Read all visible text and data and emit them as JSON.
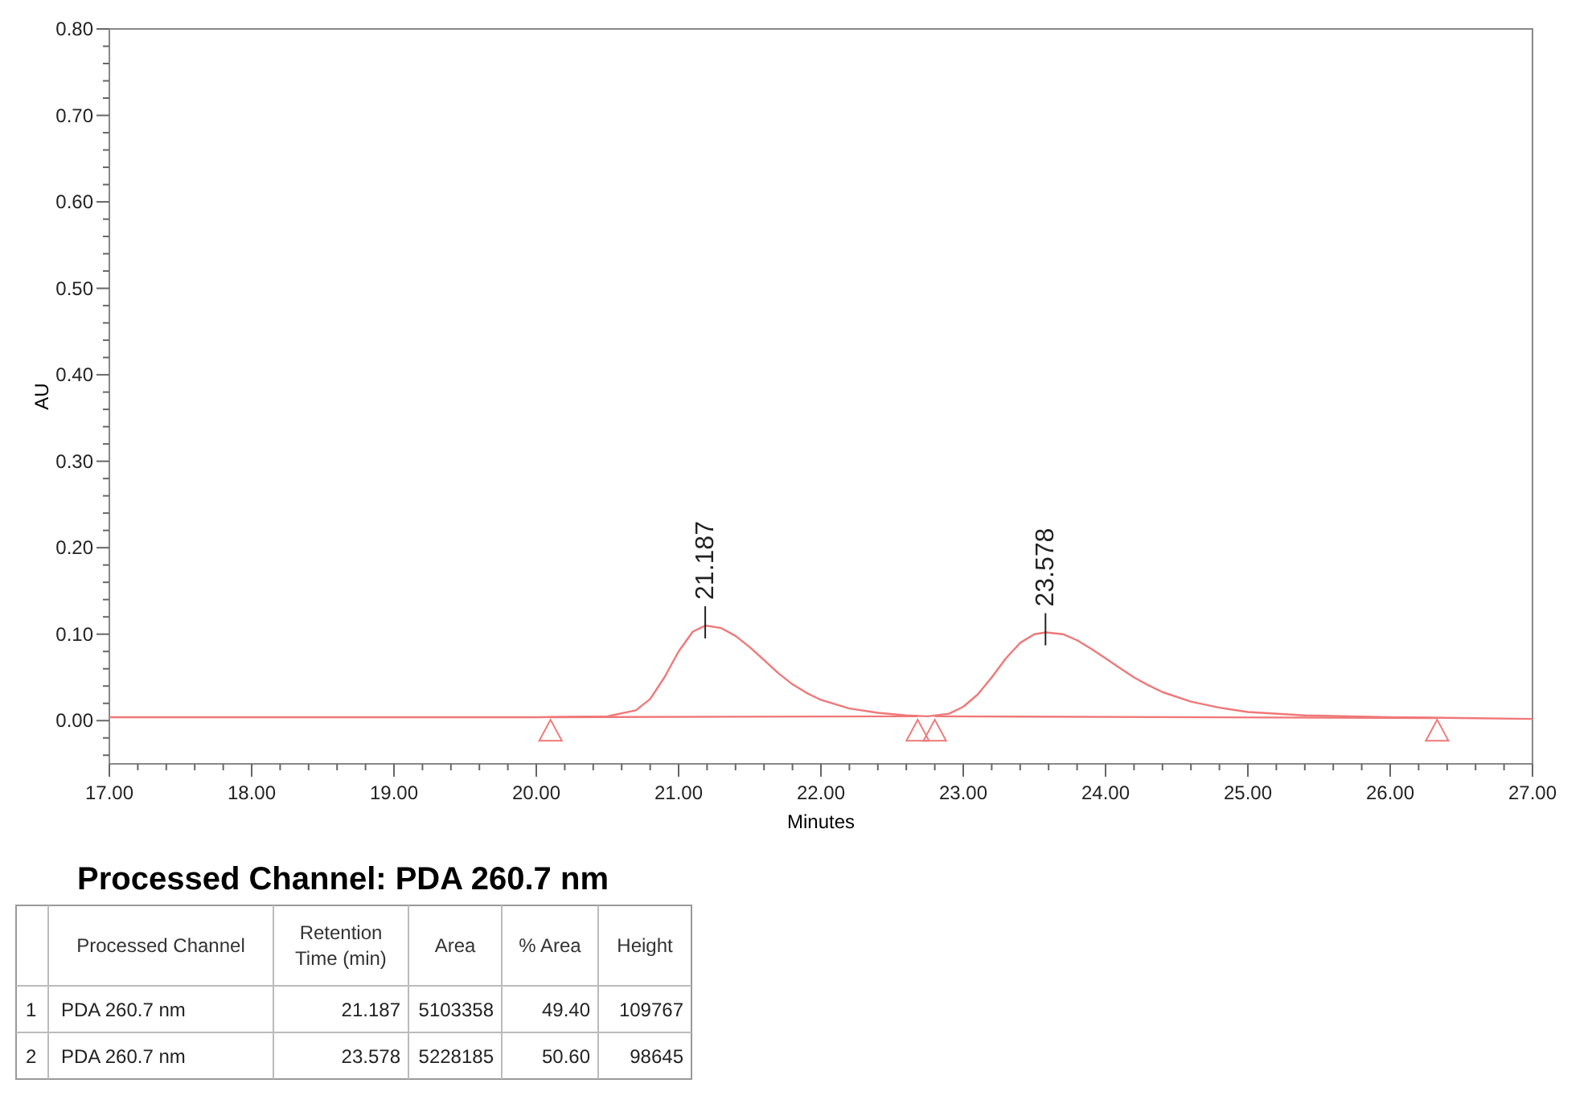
{
  "chart_data": [
    {
      "type": "line",
      "xlabel": "Minutes",
      "ylabel": "AU",
      "xlim": [
        17,
        27
      ],
      "ylim": [
        -0.05,
        0.8
      ],
      "xticks": [
        {
          "value": 17,
          "label": "17.00"
        },
        {
          "value": 17.2,
          "label": null
        },
        {
          "value": 17.4,
          "label": null
        },
        {
          "value": 17.6,
          "label": null
        },
        {
          "value": 17.8,
          "label": null
        },
        {
          "value": 18,
          "label": "18.00"
        },
        {
          "value": 18.2,
          "label": null
        },
        {
          "value": 18.4,
          "label": null
        },
        {
          "value": 18.6,
          "label": null
        },
        {
          "value": 18.8,
          "label": null
        },
        {
          "value": 19,
          "label": "19.00"
        },
        {
          "value": 19.2,
          "label": null
        },
        {
          "value": 19.4,
          "label": null
        },
        {
          "value": 19.6,
          "label": null
        },
        {
          "value": 19.8,
          "label": null
        },
        {
          "value": 20,
          "label": "20.00"
        },
        {
          "value": 20.2,
          "label": null
        },
        {
          "value": 20.4,
          "label": null
        },
        {
          "value": 20.6,
          "label": null
        },
        {
          "value": 20.8,
          "label": null
        },
        {
          "value": 21,
          "label": "21.00"
        },
        {
          "value": 21.2,
          "label": null
        },
        {
          "value": 21.4,
          "label": null
        },
        {
          "value": 21.6,
          "label": null
        },
        {
          "value": 21.8,
          "label": null
        },
        {
          "value": 22,
          "label": "22.00"
        },
        {
          "value": 22.2,
          "label": null
        },
        {
          "value": 22.4,
          "label": null
        },
        {
          "value": 22.6,
          "label": null
        },
        {
          "value": 22.8,
          "label": null
        },
        {
          "value": 23,
          "label": "23.00"
        },
        {
          "value": 23.2,
          "label": null
        },
        {
          "value": 23.4,
          "label": null
        },
        {
          "value": 23.6,
          "label": null
        },
        {
          "value": 23.8,
          "label": null
        },
        {
          "value": 24,
          "label": "24.00"
        },
        {
          "value": 24.2,
          "label": null
        },
        {
          "value": 24.4,
          "label": null
        },
        {
          "value": 24.6,
          "label": null
        },
        {
          "value": 24.8,
          "label": null
        },
        {
          "value": 25,
          "label": "25.00"
        },
        {
          "value": 25.2,
          "label": null
        },
        {
          "value": 25.4,
          "label": null
        },
        {
          "value": 25.6,
          "label": null
        },
        {
          "value": 25.8,
          "label": null
        },
        {
          "value": 26,
          "label": "26.00"
        },
        {
          "value": 26.2,
          "label": null
        },
        {
          "value": 26.4,
          "label": null
        },
        {
          "value": 26.6,
          "label": null
        },
        {
          "value": 26.8,
          "label": null
        },
        {
          "value": 27,
          "label": "27.00"
        }
      ],
      "yticks": [
        {
          "value": -0.04,
          "label": null
        },
        {
          "value": -0.02,
          "label": null
        },
        {
          "value": 0,
          "label": "0.00"
        },
        {
          "value": 0.02,
          "label": null
        },
        {
          "value": 0.04,
          "label": null
        },
        {
          "value": 0.06,
          "label": null
        },
        {
          "value": 0.08,
          "label": null
        },
        {
          "value": 0.1,
          "label": "0.10"
        },
        {
          "value": 0.12,
          "label": null
        },
        {
          "value": 0.14,
          "label": null
        },
        {
          "value": 0.16,
          "label": null
        },
        {
          "value": 0.18,
          "label": null
        },
        {
          "value": 0.2,
          "label": "0.20"
        },
        {
          "value": 0.22,
          "label": null
        },
        {
          "value": 0.24,
          "label": null
        },
        {
          "value": 0.26,
          "label": null
        },
        {
          "value": 0.28,
          "label": null
        },
        {
          "value": 0.3,
          "label": "0.30"
        },
        {
          "value": 0.32,
          "label": null
        },
        {
          "value": 0.34,
          "label": null
        },
        {
          "value": 0.36,
          "label": null
        },
        {
          "value": 0.38,
          "label": null
        },
        {
          "value": 0.4,
          "label": "0.40"
        },
        {
          "value": 0.42,
          "label": null
        },
        {
          "value": 0.44,
          "label": null
        },
        {
          "value": 0.46,
          "label": null
        },
        {
          "value": 0.48,
          "label": null
        },
        {
          "value": 0.5,
          "label": "0.50"
        },
        {
          "value": 0.52,
          "label": null
        },
        {
          "value": 0.54,
          "label": null
        },
        {
          "value": 0.56,
          "label": null
        },
        {
          "value": 0.58,
          "label": null
        },
        {
          "value": 0.6,
          "label": "0.60"
        },
        {
          "value": 0.62,
          "label": null
        },
        {
          "value": 0.64,
          "label": null
        },
        {
          "value": 0.66,
          "label": null
        },
        {
          "value": 0.68,
          "label": null
        },
        {
          "value": 0.7,
          "label": "0.70"
        },
        {
          "value": 0.72,
          "label": null
        },
        {
          "value": 0.74,
          "label": null
        },
        {
          "value": 0.76,
          "label": null
        },
        {
          "value": 0.78,
          "label": null
        },
        {
          "value": 0.8,
          "label": "0.80"
        }
      ],
      "grid": false,
      "series": [
        {
          "type": "line",
          "color": "#f07878",
          "x": [
            17,
            18,
            19,
            20,
            20.5,
            20.7,
            20.8,
            20.9,
            21,
            21.1,
            21.19,
            21.3,
            21.4,
            21.5,
            21.6,
            21.7,
            21.8,
            21.9,
            22,
            22.2,
            22.4,
            22.6,
            22.75,
            22.9,
            23,
            23.1,
            23.2,
            23.3,
            23.4,
            23.5,
            23.58,
            23.7,
            23.8,
            23.9,
            24,
            24.1,
            24.2,
            24.3,
            24.4,
            24.6,
            24.8,
            25,
            25.4,
            26,
            26.5,
            27
          ],
          "values": [
            0.004,
            0.004,
            0.004,
            0.004,
            0.005,
            0.012,
            0.025,
            0.05,
            0.08,
            0.103,
            0.11,
            0.107,
            0.098,
            0.085,
            0.07,
            0.055,
            0.042,
            0.032,
            0.024,
            0.014,
            0.009,
            0.006,
            0.005,
            0.008,
            0.016,
            0.03,
            0.05,
            0.072,
            0.09,
            0.1,
            0.102,
            0.1,
            0.093,
            0.083,
            0.072,
            0.061,
            0.05,
            0.041,
            0.033,
            0.022,
            0.015,
            0.01,
            0.006,
            0.004,
            0.003,
            0.002
          ]
        },
        {
          "type": "line",
          "color": "#f07878",
          "x": [
            20.1,
            22.68
          ],
          "values": [
            0.004,
            0.005
          ]
        },
        {
          "type": "line",
          "color": "#f07878",
          "x": [
            22.8,
            26.33
          ],
          "values": [
            0.005,
            0.003
          ]
        },
        {
          "type": "scatter",
          "color": "#f07878",
          "marker": "triangle",
          "x": [
            20.1,
            22.68,
            22.8,
            26.33
          ],
          "values": [
            -0.012,
            -0.012,
            -0.012,
            -0.012
          ]
        }
      ],
      "annotations": [
        {
          "text": "21.187",
          "x": 21.187,
          "y": 0.11
        },
        {
          "text": "23.578",
          "x": 23.578,
          "y": 0.102
        }
      ]
    },
    {
      "type": "other",
      "title": "Processed Channel: PDA 260.7 nm",
      "categories": [
        null,
        "Processed Channel",
        "Retention Time (min)",
        "Area",
        "% Area",
        "Height"
      ],
      "cell_labels": [
        [
          "1",
          "PDA 260.7 nm",
          "21.187",
          "5103358",
          "49.40",
          "109767"
        ],
        [
          "2",
          "PDA 260.7 nm",
          "23.578",
          "5228185",
          "50.60",
          "98645"
        ]
      ]
    }
  ]
}
